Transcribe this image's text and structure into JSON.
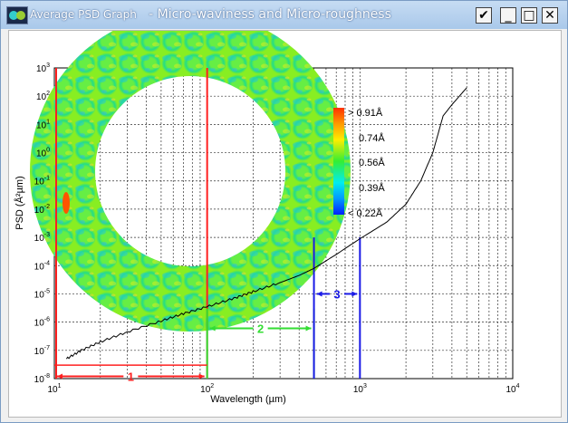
{
  "window": {
    "title": "Average PSD Graph",
    "subtitle": "- Micro-waviness and Micro-roughness",
    "buttons": {
      "check": "✔",
      "minimize": "_",
      "maximize": "□",
      "close": "✕"
    }
  },
  "colors": {
    "band1": "#ff2020",
    "band2": "#33dd33",
    "band3": "#1a1ae6",
    "curve": "#000000",
    "grid": "#333333"
  },
  "chart_data": {
    "type": "line",
    "title": "",
    "xlabel": "Wavelength (µm)",
    "ylabel": "PSD (Å²µm)",
    "xscale": "log",
    "yscale": "log",
    "xlim": [
      10,
      10000
    ],
    "ylim": [
      1e-08,
      1000
    ],
    "x_ticks": [
      {
        "value": 10,
        "base": "10",
        "exp": "1"
      },
      {
        "value": 100,
        "base": "10",
        "exp": "2"
      },
      {
        "value": 1000,
        "base": "10",
        "exp": "3"
      },
      {
        "value": 10000,
        "base": "10",
        "exp": "4"
      }
    ],
    "y_ticks": [
      {
        "value": 1000,
        "base": "10",
        "exp": "3"
      },
      {
        "value": 100,
        "base": "10",
        "exp": "2"
      },
      {
        "value": 10,
        "base": "10",
        "exp": "1"
      },
      {
        "value": 1,
        "base": "10",
        "exp": "0"
      },
      {
        "value": 0.1,
        "base": "10",
        "exp": "-1"
      },
      {
        "value": 0.01,
        "base": "10",
        "exp": "-2"
      },
      {
        "value": 0.001,
        "base": "10",
        "exp": "-3"
      },
      {
        "value": 0.0001,
        "base": "10",
        "exp": "-4"
      },
      {
        "value": 1e-05,
        "base": "10",
        "exp": "-5"
      },
      {
        "value": 1e-06,
        "base": "10",
        "exp": "-6"
      },
      {
        "value": 1e-07,
        "base": "10",
        "exp": "-7"
      },
      {
        "value": 1e-08,
        "base": "10",
        "exp": "-8"
      }
    ],
    "grid": true,
    "series": [
      {
        "x": [
          12,
          15,
          20,
          30,
          50,
          70,
          100,
          150,
          200,
          300,
          400,
          500,
          700,
          1000,
          1500,
          2000,
          2500,
          3000,
          3500,
          4000,
          5000
        ],
        "y": [
          5e-08,
          1e-07,
          2e-07,
          4.5e-07,
          1.1e-06,
          2e-06,
          3.5e-06,
          7e-06,
          1.2e-05,
          2.5e-05,
          4.5e-05,
          8e-05,
          0.00025,
          0.0009,
          0.0035,
          0.015,
          0.1,
          1,
          20.0,
          50.0,
          200.0
        ]
      }
    ],
    "bands": [
      {
        "label": "1",
        "x_start": 10,
        "x_end": 100,
        "y_top": 1000,
        "arrow_y": 1.2e-08
      },
      {
        "label": "2",
        "x_start": 100,
        "x_end": 500,
        "y_top": 3e-06,
        "arrow_y": 6e-07
      },
      {
        "label": "3",
        "x_start": 500,
        "x_end": 1000,
        "y_top": 0.001,
        "arrow_y": 1e-05
      }
    ]
  },
  "colorbar": {
    "labels": [
      "> 0.91Å",
      "0.74Å",
      "0.56Å",
      "0.39Å",
      "< 0.22Å"
    ]
  }
}
